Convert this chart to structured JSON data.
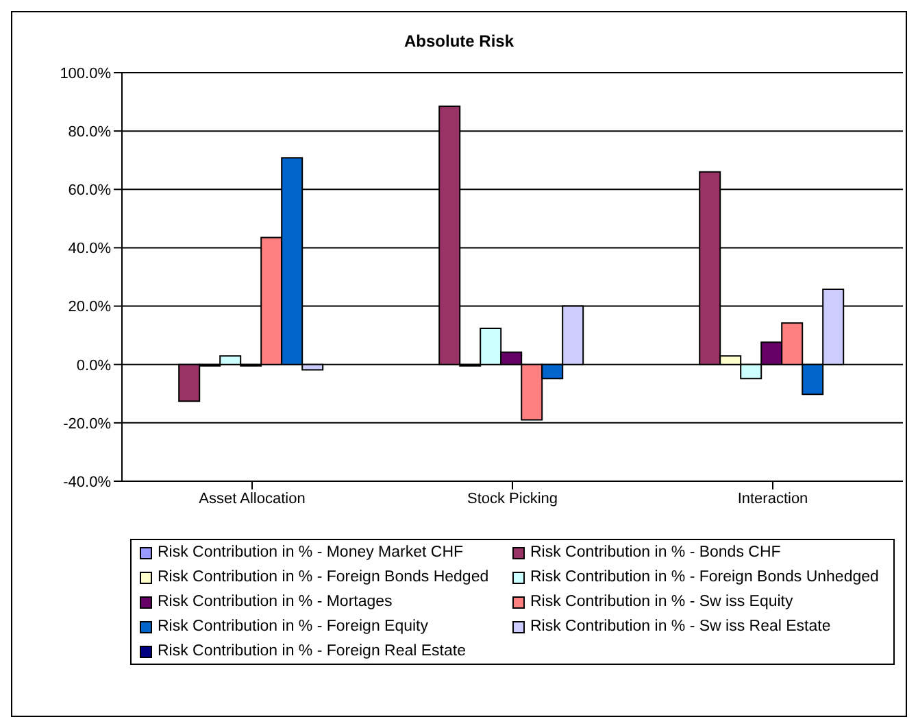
{
  "chart_data": {
    "type": "bar",
    "title": "Absolute Risk",
    "categories": [
      "Asset Allocation",
      "Stock Picking",
      "Interaction"
    ],
    "series": [
      {
        "name": "Risk Contribution in % - Money Market CHF",
        "color": "#9999ff",
        "values": [
          0,
          0,
          0
        ]
      },
      {
        "name": "Risk Contribution in % - Bonds CHF",
        "color": "#993366",
        "values": [
          -12.6,
          88.5,
          66.0
        ]
      },
      {
        "name": "Risk Contribution in % - Foreign Bonds Hedged",
        "color": "#ffffcc",
        "values": [
          -0.5,
          -0.5,
          2.9
        ]
      },
      {
        "name": "Risk Contribution in % - Foreign Bonds Unhedged",
        "color": "#ccffff",
        "values": [
          2.9,
          12.4,
          -4.8
        ]
      },
      {
        "name": "Risk Contribution in % - Mortages",
        "color": "#660066",
        "values": [
          -0.5,
          4.2,
          7.6
        ]
      },
      {
        "name": "Risk Contribution in % - Sw iss Equity",
        "color": "#ff8080",
        "values": [
          43.5,
          -19.0,
          14.2
        ]
      },
      {
        "name": "Risk Contribution in % - Foreign Equity",
        "color": "#0066cc",
        "values": [
          70.8,
          -4.8,
          -10.2
        ]
      },
      {
        "name": "Risk Contribution in % - Sw iss Real Estate",
        "color": "#ccccff",
        "values": [
          -1.8,
          20.0,
          25.8
        ]
      },
      {
        "name": "Risk Contribution in % - Foreign Real Estate",
        "color": "#000080",
        "values": [
          0,
          0,
          0
        ]
      }
    ],
    "ylim": [
      -40,
      100
    ],
    "yticks": [
      {
        "value": -40,
        "label": "-40.0%"
      },
      {
        "value": -20,
        "label": "-20.0%"
      },
      {
        "value": 0,
        "label": "0.0%"
      },
      {
        "value": 20,
        "label": "20.0%"
      },
      {
        "value": 40,
        "label": "40.0%"
      },
      {
        "value": 60,
        "label": "60.0%"
      },
      {
        "value": 80,
        "label": "80.0%"
      },
      {
        "value": 100,
        "label": "100.0%"
      }
    ],
    "grid": "y",
    "legend": "bottom"
  }
}
